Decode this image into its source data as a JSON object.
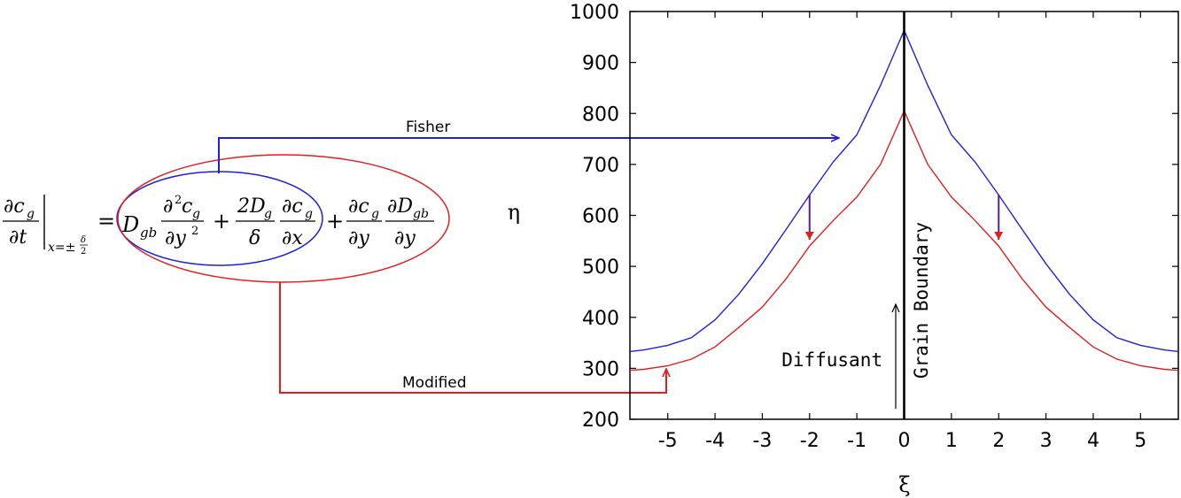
{
  "colors": {
    "fisher": "#2020dd",
    "modified": "#e02020",
    "axis": "#000000",
    "connector_fisher": "#1f1fd6",
    "connector_modified": "#e01f1f"
  },
  "equation": {
    "lhs_num": "∂c",
    "lhs_num_sub": "g",
    "lhs_den": "∂t",
    "eval_sub": "x=±",
    "eval_frac_num": "δ",
    "eval_frac_den": "2",
    "equals": "=",
    "t1_coef": "D",
    "t1_coef_sub": "gb",
    "t1_num": "∂",
    "t1_num_sup": "2",
    "t1_num_var": "c",
    "t1_num_sub": "g",
    "t1_den": "∂y",
    "t1_den_sup": "2",
    "plus1": "+",
    "t2_num": "2D",
    "t2_num_sub": "g",
    "t2_den": "δ",
    "t2b_num": "∂c",
    "t2b_num_sub": "g",
    "t2b_den": "∂x",
    "plus2": "+",
    "t3_num": "∂c",
    "t3_num_sub": "g",
    "t3_den": "∂y",
    "t4_num": "∂D",
    "t4_num_sub": "gb",
    "t4_den": "∂y"
  },
  "connectors": {
    "fisher_label": "Fisher",
    "modified_label": "Modified"
  },
  "chart_data": {
    "type": "line",
    "title": "",
    "xlabel": "ξ",
    "ylabel": "η",
    "xlim": [
      -5.8,
      5.8
    ],
    "ylim": [
      200,
      1000
    ],
    "xticks": [
      -5,
      -4,
      -3,
      -2,
      -1,
      0,
      1,
      2,
      3,
      4,
      5
    ],
    "yticks": [
      200,
      300,
      400,
      500,
      600,
      700,
      800,
      900,
      1000
    ],
    "grid": false,
    "x": [
      0,
      0.5,
      1,
      1.5,
      2,
      2.5,
      3,
      3.5,
      4,
      4.5,
      5,
      5.5,
      5.8
    ],
    "series": [
      {
        "name": "Fisher",
        "color": "#2020dd",
        "values": [
          963,
          855,
          758,
          705,
          640,
          572,
          505,
          445,
          395,
          360,
          345,
          336,
          333
        ]
      },
      {
        "name": "Modified",
        "color": "#e02020",
        "values": [
          805,
          700,
          636,
          590,
          540,
          475,
          420,
          380,
          342,
          318,
          305,
          298,
          296
        ]
      }
    ],
    "annotations": {
      "boundary_label": "Grain Boundary",
      "diffusant_label": "Diffusant",
      "shift_arrows_x": [
        -2,
        2
      ]
    }
  }
}
